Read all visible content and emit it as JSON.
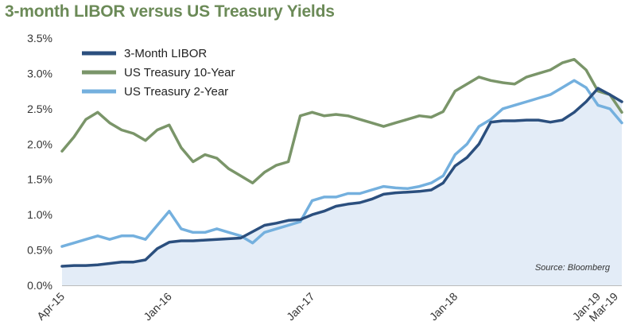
{
  "chart_data": {
    "type": "line",
    "title": "3-month LIBOR versus US Treasury Yields",
    "xlabel": "",
    "ylabel": "",
    "y_tick_labels": [
      "0.0%",
      "0.5%",
      "1.0%",
      "1.5%",
      "2.0%",
      "2.5%",
      "3.0%",
      "3.5%"
    ],
    "y_ticks": [
      0.0,
      0.5,
      1.0,
      1.5,
      2.0,
      2.5,
      3.0,
      3.5
    ],
    "ylim": [
      0.0,
      3.5
    ],
    "x_tick_labels": [
      "Apr-15",
      "Jan-16",
      "Jan-17",
      "Jan-18",
      "Jan-19",
      "Mar-19"
    ],
    "x_ticks": [
      0,
      9,
      21,
      33,
      45,
      47
    ],
    "xlim": [
      0,
      47
    ],
    "grid": false,
    "legend_position": "top-left",
    "annotation": "Source: Bloomberg",
    "colors": {
      "libor": "#2b4f7e",
      "ten_year": "#7a9569",
      "two_year": "#74b0de",
      "area": "#e3ecf7",
      "title": "#6b8a57"
    },
    "x": [
      0,
      1,
      2,
      3,
      4,
      5,
      6,
      7,
      8,
      9,
      10,
      11,
      12,
      13,
      14,
      15,
      16,
      17,
      18,
      19,
      20,
      21,
      22,
      23,
      24,
      25,
      26,
      27,
      28,
      29,
      30,
      31,
      32,
      33,
      34,
      35,
      36,
      37,
      38,
      39,
      40,
      41,
      42,
      43,
      44,
      45,
      46,
      47
    ],
    "series": [
      {
        "name": "3-Month LIBOR",
        "values": [
          0.27,
          0.28,
          0.28,
          0.29,
          0.31,
          0.33,
          0.33,
          0.36,
          0.52,
          0.61,
          0.63,
          0.63,
          0.64,
          0.65,
          0.66,
          0.67,
          0.76,
          0.85,
          0.88,
          0.92,
          0.93,
          1.0,
          1.05,
          1.12,
          1.15,
          1.17,
          1.22,
          1.29,
          1.31,
          1.32,
          1.33,
          1.35,
          1.45,
          1.69,
          1.81,
          2.0,
          2.31,
          2.33,
          2.33,
          2.34,
          2.34,
          2.31,
          2.34,
          2.45,
          2.6,
          2.79,
          2.7,
          2.6
        ]
      },
      {
        "name": "US Treasury 10-Year",
        "values": [
          1.9,
          2.1,
          2.35,
          2.45,
          2.3,
          2.2,
          2.15,
          2.05,
          2.2,
          2.27,
          1.95,
          1.75,
          1.85,
          1.8,
          1.65,
          1.55,
          1.45,
          1.6,
          1.7,
          1.75,
          2.4,
          2.45,
          2.4,
          2.42,
          2.4,
          2.35,
          2.3,
          2.25,
          2.3,
          2.35,
          2.4,
          2.38,
          2.46,
          2.75,
          2.85,
          2.95,
          2.9,
          2.87,
          2.85,
          2.95,
          3.0,
          3.05,
          3.15,
          3.2,
          3.05,
          2.75,
          2.7,
          2.45
        ]
      },
      {
        "name": "US Treasury 2-Year",
        "values": [
          0.55,
          0.6,
          0.65,
          0.7,
          0.65,
          0.7,
          0.7,
          0.65,
          0.85,
          1.05,
          0.8,
          0.75,
          0.75,
          0.8,
          0.75,
          0.7,
          0.6,
          0.75,
          0.8,
          0.85,
          0.9,
          1.2,
          1.25,
          1.25,
          1.3,
          1.3,
          1.35,
          1.4,
          1.38,
          1.37,
          1.4,
          1.45,
          1.55,
          1.85,
          2.0,
          2.25,
          2.35,
          2.5,
          2.55,
          2.6,
          2.65,
          2.7,
          2.8,
          2.9,
          2.8,
          2.55,
          2.5,
          2.3
        ]
      }
    ]
  }
}
